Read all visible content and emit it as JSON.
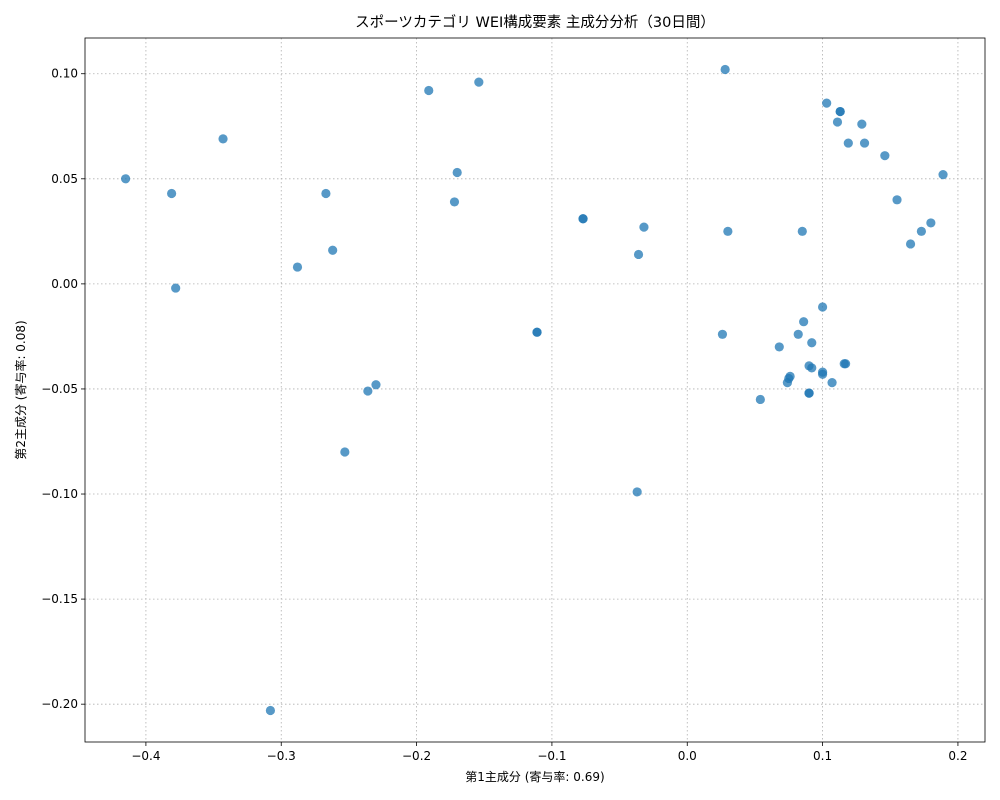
{
  "chart_data": {
    "type": "scatter",
    "title": "スポーツカテゴリ WEI構成要素 主成分分析（30日間）",
    "xlabel": "第1主成分 (寄与率: 0.69)",
    "ylabel": "第2主成分 (寄与率: 0.08)",
    "xlim": [
      -0.445,
      0.22
    ],
    "ylim": [
      -0.218,
      0.117
    ],
    "x_ticks": [
      -0.4,
      -0.3,
      -0.2,
      -0.1,
      0.0,
      0.1,
      0.2
    ],
    "x_tick_labels": [
      "−0.4",
      "−0.3",
      "−0.2",
      "−0.1",
      "0.0",
      "0.1",
      "0.2"
    ],
    "y_ticks": [
      0.1,
      0.05,
      0.0,
      -0.05,
      -0.1,
      -0.15,
      -0.2
    ],
    "y_tick_labels": [
      "0.10",
      "0.05",
      "0.00",
      "−0.05",
      "−0.10",
      "−0.15",
      "−0.20"
    ],
    "grid": true,
    "marker_color": "#1f77b4",
    "marker_alpha": 0.75,
    "points": [
      {
        "x": -0.415,
        "y": 0.05
      },
      {
        "x": -0.381,
        "y": 0.043
      },
      {
        "x": -0.378,
        "y": -0.002
      },
      {
        "x": -0.343,
        "y": 0.069
      },
      {
        "x": -0.308,
        "y": -0.203
      },
      {
        "x": -0.288,
        "y": 0.008
      },
      {
        "x": -0.267,
        "y": 0.043
      },
      {
        "x": -0.262,
        "y": 0.016
      },
      {
        "x": -0.253,
        "y": -0.08
      },
      {
        "x": -0.236,
        "y": -0.051
      },
      {
        "x": -0.23,
        "y": -0.048
      },
      {
        "x": -0.191,
        "y": 0.092
      },
      {
        "x": -0.172,
        "y": 0.039
      },
      {
        "x": -0.17,
        "y": 0.053
      },
      {
        "x": -0.154,
        "y": 0.096
      },
      {
        "x": -0.111,
        "y": -0.023
      },
      {
        "x": -0.111,
        "y": -0.023
      },
      {
        "x": -0.077,
        "y": 0.031
      },
      {
        "x": -0.077,
        "y": 0.031
      },
      {
        "x": -0.037,
        "y": -0.099
      },
      {
        "x": -0.036,
        "y": 0.014
      },
      {
        "x": -0.032,
        "y": 0.027
      },
      {
        "x": 0.026,
        "y": -0.024
      },
      {
        "x": 0.028,
        "y": 0.102
      },
      {
        "x": 0.03,
        "y": 0.025
      },
      {
        "x": 0.054,
        "y": -0.055
      },
      {
        "x": 0.068,
        "y": -0.03
      },
      {
        "x": 0.074,
        "y": -0.047
      },
      {
        "x": 0.075,
        "y": -0.045
      },
      {
        "x": 0.076,
        "y": -0.044
      },
      {
        "x": 0.082,
        "y": -0.024
      },
      {
        "x": 0.085,
        "y": 0.025
      },
      {
        "x": 0.086,
        "y": -0.018
      },
      {
        "x": 0.09,
        "y": -0.039
      },
      {
        "x": 0.09,
        "y": -0.052
      },
      {
        "x": 0.09,
        "y": -0.052
      },
      {
        "x": 0.092,
        "y": -0.028
      },
      {
        "x": 0.092,
        "y": -0.04
      },
      {
        "x": 0.1,
        "y": -0.042
      },
      {
        "x": 0.1,
        "y": -0.043
      },
      {
        "x": 0.1,
        "y": -0.011
      },
      {
        "x": 0.103,
        "y": 0.086
      },
      {
        "x": 0.107,
        "y": -0.047
      },
      {
        "x": 0.111,
        "y": 0.077
      },
      {
        "x": 0.113,
        "y": 0.082
      },
      {
        "x": 0.113,
        "y": 0.082
      },
      {
        "x": 0.116,
        "y": -0.038
      },
      {
        "x": 0.117,
        "y": -0.038
      },
      {
        "x": 0.119,
        "y": 0.067
      },
      {
        "x": 0.129,
        "y": 0.076
      },
      {
        "x": 0.131,
        "y": 0.067
      },
      {
        "x": 0.146,
        "y": 0.061
      },
      {
        "x": 0.155,
        "y": 0.04
      },
      {
        "x": 0.165,
        "y": 0.019
      },
      {
        "x": 0.173,
        "y": 0.025
      },
      {
        "x": 0.18,
        "y": 0.029
      },
      {
        "x": 0.189,
        "y": 0.052
      }
    ]
  }
}
